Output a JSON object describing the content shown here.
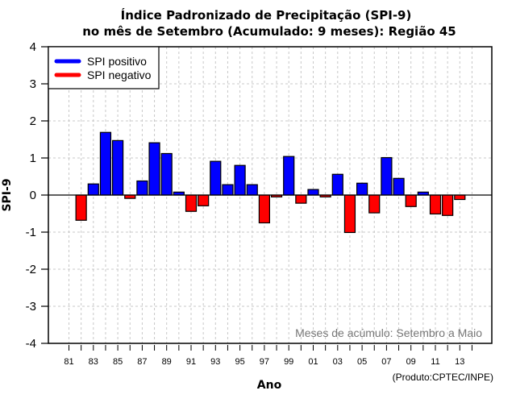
{
  "chart_data": {
    "type": "bar",
    "title": "Índice Padronizado de Precipitação (SPI-9)",
    "subtitle": "no mês de Setembro (Acumulado: 9 meses): Região 45",
    "xlabel": "Ano",
    "ylabel": "SPI-9",
    "ylim": [
      -4,
      4
    ],
    "yticks": [
      -4,
      -3,
      -2,
      -1,
      0,
      1,
      2,
      3,
      4
    ],
    "xlim_years": [
      1981,
      2014
    ],
    "xtick_labels": [
      "81",
      "83",
      "85",
      "87",
      "89",
      "91",
      "93",
      "95",
      "97",
      "99",
      "01",
      "03",
      "05",
      "07",
      "09",
      "11",
      "13"
    ],
    "xtick_years": [
      1981,
      1983,
      1985,
      1987,
      1989,
      1991,
      1993,
      1995,
      1997,
      1999,
      2001,
      2003,
      2005,
      2007,
      2009,
      2011,
      2013
    ],
    "grid": true,
    "legend": {
      "position": "top-left",
      "entries": [
        {
          "label": "SPI positivo",
          "color": "#0000ff"
        },
        {
          "label": "SPI negativo",
          "color": "#ff0000"
        }
      ]
    },
    "annotation": "Meses de acúmulo: Setembro a Maio",
    "credit": "(Produto:CPTEC/INPE)",
    "colors": {
      "positive": "#0000ff",
      "negative": "#ff0000",
      "grid": "#c8c8c8"
    },
    "years": [
      1982,
      1983,
      1984,
      1985,
      1986,
      1987,
      1988,
      1989,
      1990,
      1991,
      1992,
      1993,
      1994,
      1995,
      1996,
      1997,
      1998,
      1999,
      2000,
      2001,
      2002,
      2003,
      2004,
      2005,
      2006,
      2007,
      2008,
      2009,
      2010,
      2011,
      2012,
      2013
    ],
    "values": [
      -0.68,
      0.3,
      1.69,
      1.47,
      -0.09,
      0.38,
      1.41,
      1.12,
      0.08,
      -0.44,
      -0.29,
      0.91,
      0.28,
      0.8,
      0.28,
      -0.75,
      -0.05,
      1.04,
      -0.22,
      0.15,
      -0.05,
      0.56,
      -1.01,
      0.32,
      -0.48,
      1.01,
      0.45,
      -0.31,
      0.08,
      -0.51,
      -0.55,
      -0.12
    ]
  }
}
